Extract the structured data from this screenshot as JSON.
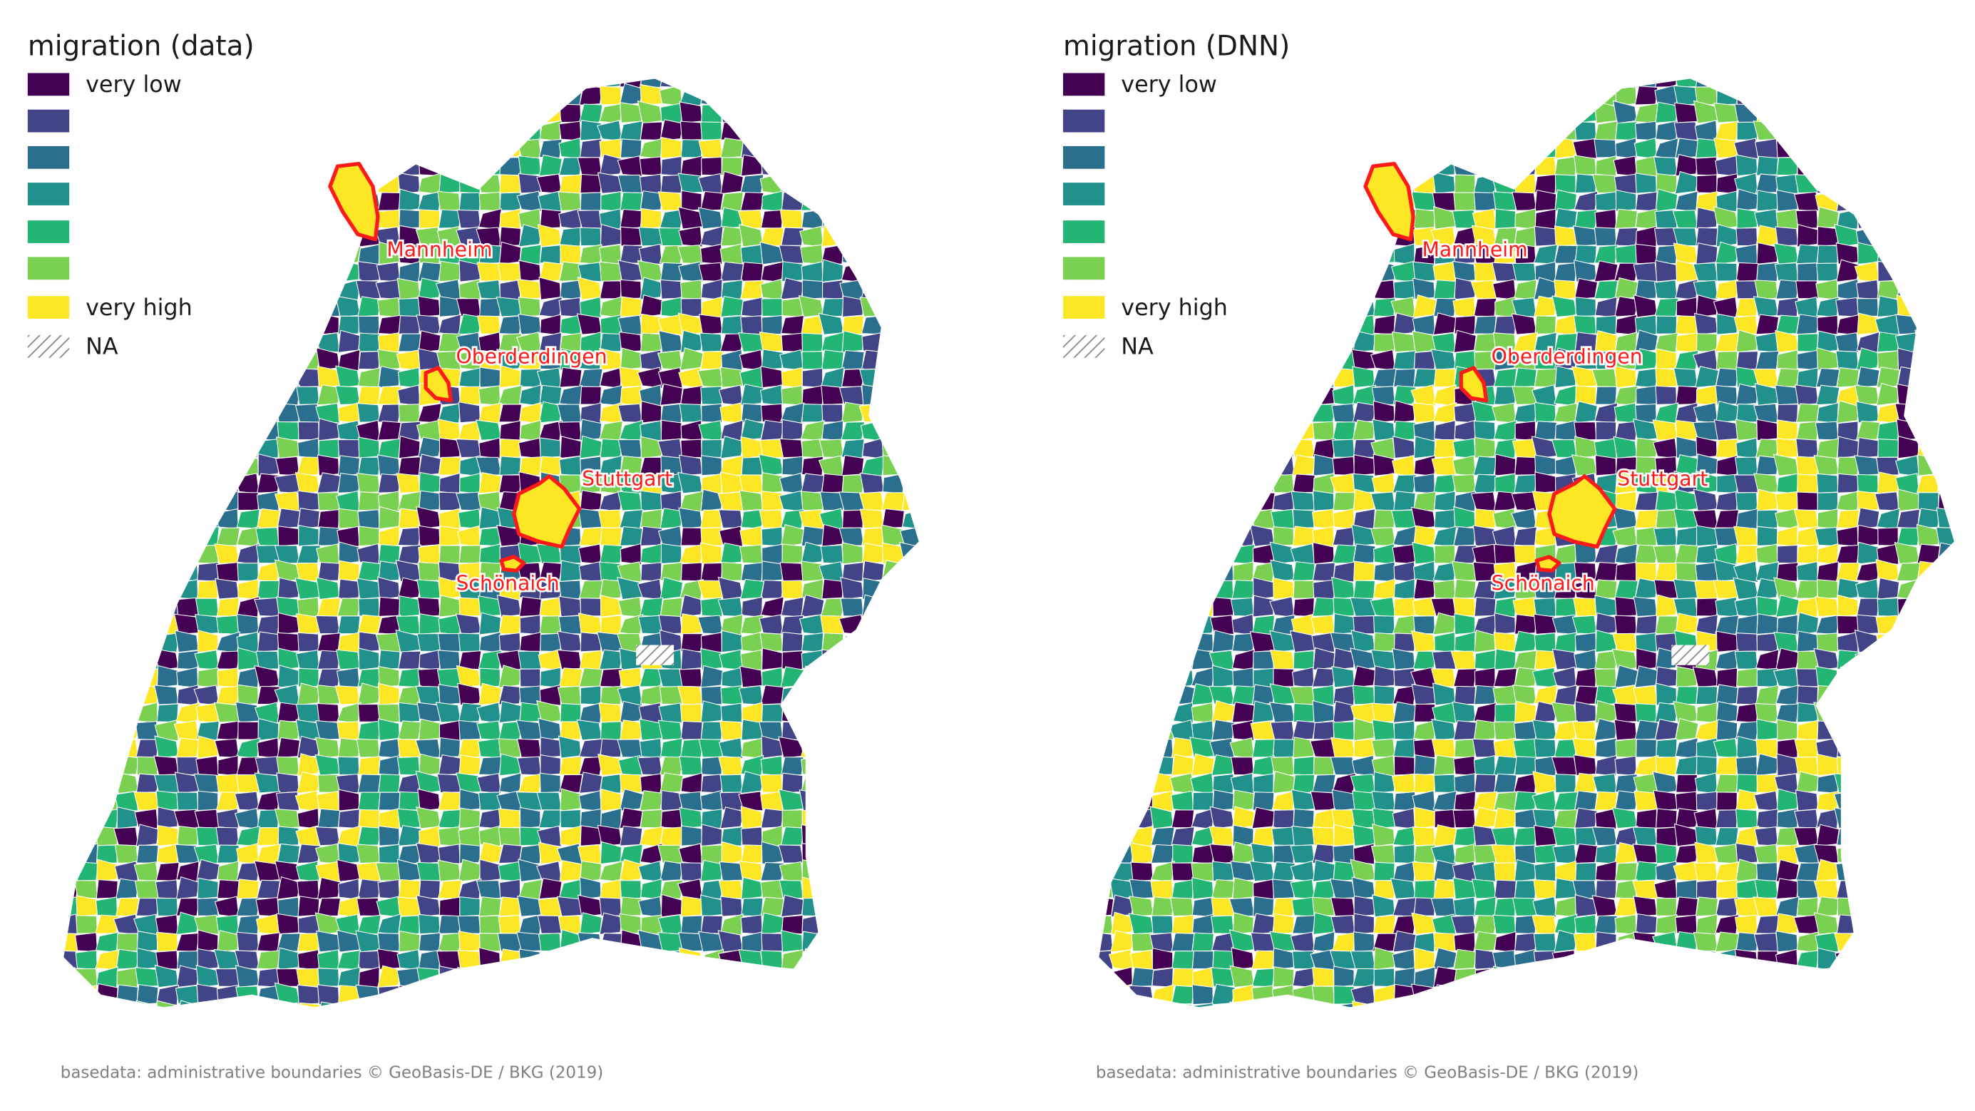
{
  "maps": [
    {
      "legend": {
        "title": "migration (data)",
        "items": [
          {
            "label": "very low",
            "color": "#440154"
          },
          {
            "color": "#414487"
          },
          {
            "color": "#2a6f8e"
          },
          {
            "color": "#21918c"
          },
          {
            "color": "#22b573"
          },
          {
            "color": "#7ad151"
          },
          {
            "label": "very high",
            "color": "#fde725"
          }
        ],
        "na": "NA"
      },
      "cities": [
        "Mannheim",
        "Oberderdingen",
        "Stuttgart",
        "Schönaich"
      ],
      "source": "basedata: administrative boundaries © GeoBasis-DE / BKG (2019)"
    },
    {
      "legend": {
        "title": "migration (DNN)",
        "items": [
          {
            "label": "very low",
            "color": "#440154"
          },
          {
            "color": "#414487"
          },
          {
            "color": "#2a6f8e"
          },
          {
            "color": "#21918c"
          },
          {
            "color": "#22b573"
          },
          {
            "color": "#7ad151"
          },
          {
            "label": "very high",
            "color": "#fde725"
          }
        ],
        "na": "NA"
      },
      "cities": [
        "Mannheim",
        "Oberderdingen",
        "Stuttgart",
        "Schönaich"
      ],
      "source": "basedata: administrative boundaries © GeoBasis-DE / BKG (2019)"
    }
  ]
}
